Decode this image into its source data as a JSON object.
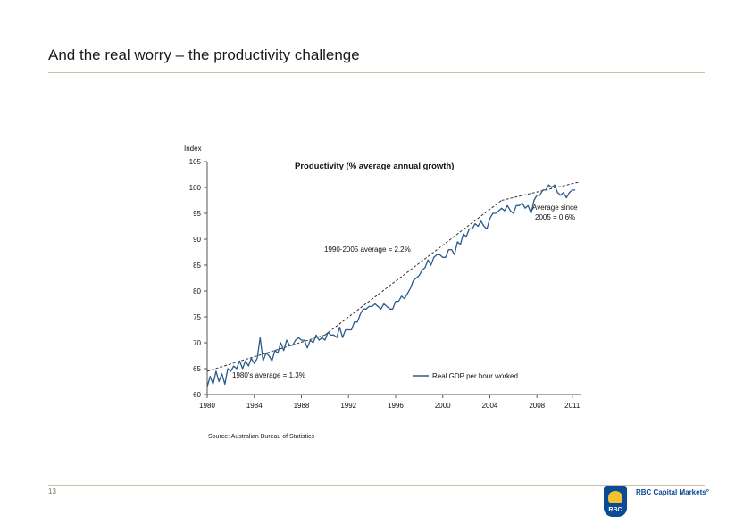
{
  "slide": {
    "title": "And the real worry – the productivity challenge",
    "page_number": "13",
    "source": "Source: Australian Bureau of Statistics",
    "brand_name": "RBC Capital Markets°",
    "brand_short": "RBC"
  },
  "colors": {
    "series": "#2a5b8c",
    "trend": "#333333",
    "rule": "#c9c1a8",
    "brand": "#0b4a94"
  },
  "chart_data": {
    "type": "line",
    "title": "Productivity (% average annual growth)",
    "ylabel": "Index",
    "xlabel": "",
    "ylim": [
      60,
      105
    ],
    "xlim": [
      1980,
      2011.7
    ],
    "yticks": [
      60,
      65,
      70,
      75,
      80,
      85,
      90,
      95,
      100,
      105
    ],
    "xticks": [
      1980,
      1984,
      1988,
      1992,
      1996,
      2000,
      2004,
      2008,
      2011
    ],
    "xtick_labels": [
      "1980",
      "1984",
      "1988",
      "1992",
      "1996",
      "2000",
      "2004",
      "2008",
      "2011"
    ],
    "legend": {
      "label": "Real GDP per hour worked",
      "position": "bottom-right"
    },
    "annotations": {
      "avg_1980s": "1980's average = 1.3%",
      "avg_1990_2005": "1990-2005 average = 2.2%",
      "avg_since_2005_line1": "Average since",
      "avg_since_2005_line2": "2005 = 0.6%"
    },
    "series": [
      {
        "name": "Real GDP per hour worked",
        "x": [
          1980.0,
          1980.25,
          1980.5,
          1980.75,
          1981.0,
          1981.25,
          1981.5,
          1981.75,
          1982.0,
          1982.25,
          1982.5,
          1982.75,
          1983.0,
          1983.25,
          1983.5,
          1983.75,
          1984.0,
          1984.25,
          1984.5,
          1984.75,
          1985.0,
          1985.25,
          1985.5,
          1985.75,
          1986.0,
          1986.25,
          1986.5,
          1986.75,
          1987.0,
          1987.25,
          1987.5,
          1987.75,
          1988.0,
          1988.25,
          1988.5,
          1988.75,
          1989.0,
          1989.25,
          1989.5,
          1989.75,
          1990.0,
          1990.25,
          1990.5,
          1990.75,
          1991.0,
          1991.25,
          1991.5,
          1991.75,
          1992.0,
          1992.25,
          1992.5,
          1992.75,
          1993.0,
          1993.25,
          1993.5,
          1993.75,
          1994.0,
          1994.25,
          1994.5,
          1994.75,
          1995.0,
          1995.25,
          1995.5,
          1995.75,
          1996.0,
          1996.25,
          1996.5,
          1996.75,
          1997.0,
          1997.25,
          1997.5,
          1997.75,
          1998.0,
          1998.25,
          1998.5,
          1998.75,
          1999.0,
          1999.25,
          1999.5,
          1999.75,
          2000.0,
          2000.25,
          2000.5,
          2000.75,
          2001.0,
          2001.25,
          2001.5,
          2001.75,
          2002.0,
          2002.25,
          2002.5,
          2002.75,
          2003.0,
          2003.25,
          2003.5,
          2003.75,
          2004.0,
          2004.25,
          2004.5,
          2004.75,
          2005.0,
          2005.25,
          2005.5,
          2005.75,
          2006.0,
          2006.25,
          2006.5,
          2006.75,
          2007.0,
          2007.25,
          2007.5,
          2007.75,
          2008.0,
          2008.25,
          2008.5,
          2008.75,
          2009.0,
          2009.25,
          2009.5,
          2009.75,
          2010.0,
          2010.25,
          2010.5,
          2010.75,
          2011.0,
          2011.25
        ],
        "values": [
          61.5,
          63.5,
          62.0,
          64.5,
          62.5,
          64.0,
          62.0,
          65.0,
          64.5,
          65.5,
          65.0,
          66.5,
          65.0,
          66.5,
          65.5,
          67.0,
          66.0,
          67.0,
          71.0,
          66.5,
          68.0,
          67.5,
          66.5,
          68.5,
          68.0,
          70.0,
          68.5,
          70.5,
          69.5,
          69.5,
          70.5,
          71.0,
          70.5,
          70.5,
          69.0,
          70.5,
          70.0,
          71.5,
          70.5,
          71.0,
          70.5,
          72.0,
          71.5,
          71.5,
          71.0,
          73.0,
          71.0,
          72.5,
          72.5,
          72.5,
          74.0,
          74.0,
          75.5,
          76.5,
          76.5,
          77.0,
          77.0,
          77.5,
          77.0,
          76.5,
          77.5,
          77.0,
          76.5,
          76.5,
          78.0,
          78.0,
          79.0,
          78.5,
          79.5,
          80.5,
          82.0,
          82.5,
          83.0,
          84.0,
          84.5,
          86.0,
          85.0,
          86.5,
          87.0,
          87.0,
          86.5,
          86.5,
          88.0,
          88.0,
          87.0,
          89.5,
          89.0,
          91.0,
          90.5,
          92.0,
          92.0,
          93.0,
          92.5,
          93.5,
          92.5,
          92.0,
          94.0,
          95.0,
          95.0,
          95.5,
          96.0,
          95.5,
          96.5,
          95.5,
          95.0,
          96.5,
          96.5,
          97.0,
          96.0,
          96.5,
          95.0,
          97.5,
          98.5,
          98.5,
          99.5,
          99.5,
          100.5,
          100.0,
          100.5,
          99.0,
          98.5,
          99.0,
          98.0,
          99.0,
          99.5,
          99.5
        ]
      }
    ],
    "trend_lines": [
      {
        "name": "1980's average = 1.3%",
        "x": [
          1980.0,
          1990.0
        ],
        "values": [
          64.5,
          71.5
        ]
      },
      {
        "name": "1990-2005 average = 2.2%",
        "x": [
          1990.0,
          2005.0
        ],
        "values": [
          71.5,
          97.5
        ]
      },
      {
        "name": "Average since 2005 = 0.6%",
        "x": [
          2005.0,
          2011.5
        ],
        "values": [
          97.5,
          101.0
        ]
      }
    ]
  }
}
